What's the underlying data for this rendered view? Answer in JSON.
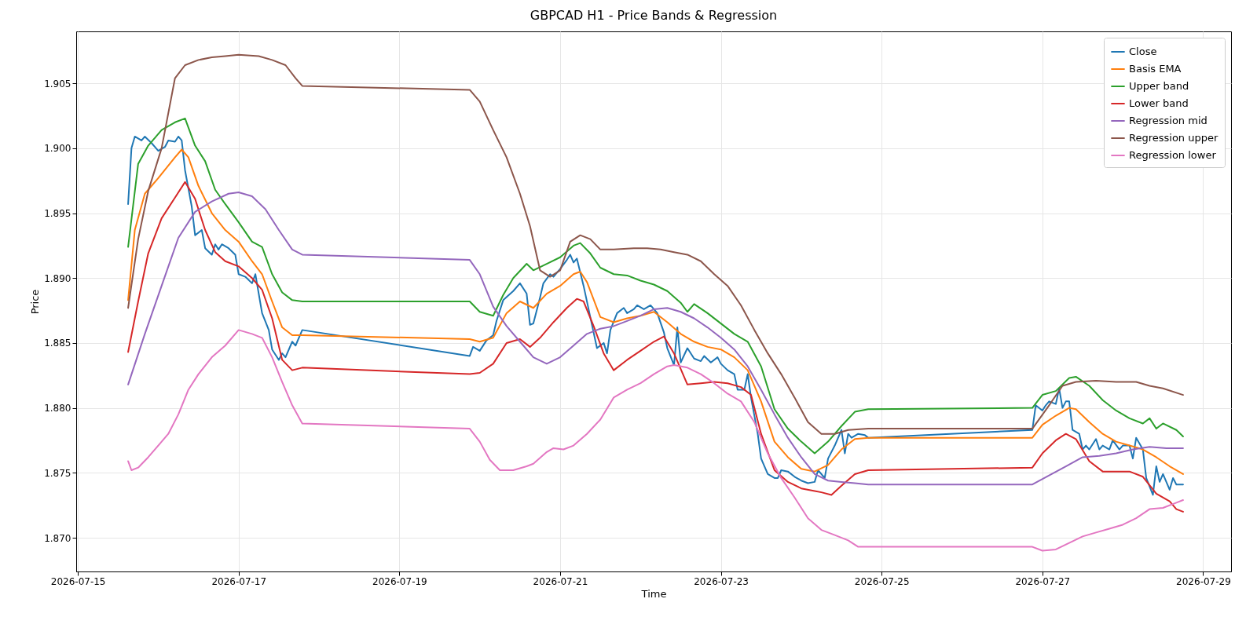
{
  "chart_data": {
    "type": "line",
    "title": "GBPCAD H1 - Price Bands & Regression",
    "xlabel": "Time",
    "ylabel": "Price",
    "grid": true,
    "legend": "top right",
    "xlim": [
      "2026-07-14T23:30",
      "2026-07-29T08:20"
    ],
    "xticks": [
      "2026-07-15",
      "2026-07-17",
      "2026-07-19",
      "2026-07-21",
      "2026-07-23",
      "2026-07-25",
      "2026-07-27",
      "2026-07-29"
    ],
    "ylim": [
      1.8674,
      1.909
    ],
    "yticks": [
      {
        "value": 1.87,
        "label": "1.870"
      },
      {
        "value": 1.875,
        "label": "1.875"
      },
      {
        "value": 1.88,
        "label": "1.880"
      },
      {
        "value": 1.885,
        "label": "1.885"
      },
      {
        "value": 1.89,
        "label": "1.890"
      },
      {
        "value": 1.895,
        "label": "1.895"
      },
      {
        "value": 1.9,
        "label": "1.900"
      },
      {
        "value": 1.905,
        "label": "1.905"
      }
    ],
    "series": [
      {
        "name": "Close",
        "color": "#1f77b4",
        "x": [
          "2026-07-15T15:00",
          "2026-07-15T16:00",
          "2026-07-15T17:00",
          "2026-07-15T19:00",
          "2026-07-15T20:00",
          "2026-07-15T22:00",
          "2026-07-15T23:00",
          "2026-07-16T00:00",
          "2026-07-16T02:00",
          "2026-07-16T03:00",
          "2026-07-16T05:00",
          "2026-07-16T06:00",
          "2026-07-16T07:00",
          "2026-07-16T08:00",
          "2026-07-16T10:00",
          "2026-07-16T11:00",
          "2026-07-16T13:00",
          "2026-07-16T14:00",
          "2026-07-16T16:00",
          "2026-07-16T17:00",
          "2026-07-16T18:00",
          "2026-07-16T19:00",
          "2026-07-16T21:00",
          "2026-07-16T23:00",
          "2026-07-17T00:00",
          "2026-07-17T02:00",
          "2026-07-17T04:00",
          "2026-07-17T05:00",
          "2026-07-17T07:00",
          "2026-07-17T09:00",
          "2026-07-17T10:00",
          "2026-07-17T12:00",
          "2026-07-17T13:00",
          "2026-07-17T14:00",
          "2026-07-17T16:00",
          "2026-07-17T17:00",
          "2026-07-17T19:00",
          "2026-07-19T21:00",
          "2026-07-19T22:00",
          "2026-07-20T00:00",
          "2026-07-20T02:00",
          "2026-07-20T04:00",
          "2026-07-20T05:00",
          "2026-07-20T07:00",
          "2026-07-20T10:00",
          "2026-07-20T12:00",
          "2026-07-20T14:00",
          "2026-07-20T15:00",
          "2026-07-20T16:00",
          "2026-07-20T18:00",
          "2026-07-20T19:00",
          "2026-07-20T21:00",
          "2026-07-20T22:00",
          "2026-07-21T00:00",
          "2026-07-21T02:00",
          "2026-07-21T03:00",
          "2026-07-21T04:00",
          "2026-07-21T05:00",
          "2026-07-21T07:00",
          "2026-07-21T09:00",
          "2026-07-21T11:00",
          "2026-07-21T13:00",
          "2026-07-21T14:00",
          "2026-07-21T15:00",
          "2026-07-21T17:00",
          "2026-07-21T19:00",
          "2026-07-21T20:00",
          "2026-07-21T22:00",
          "2026-07-21T23:00",
          "2026-07-22T01:00",
          "2026-07-22T03:00",
          "2026-07-22T05:00",
          "2026-07-22T07:00",
          "2026-07-22T08:00",
          "2026-07-22T10:00",
          "2026-07-22T11:00",
          "2026-07-22T12:00",
          "2026-07-22T14:00",
          "2026-07-22T16:00",
          "2026-07-22T18:00",
          "2026-07-22T19:00",
          "2026-07-22T21:00",
          "2026-07-22T23:00",
          "2026-07-23T00:00",
          "2026-07-23T02:00",
          "2026-07-23T04:00",
          "2026-07-23T05:00",
          "2026-07-23T07:00",
          "2026-07-23T08:00",
          "2026-07-23T09:00",
          "2026-07-23T11:00",
          "2026-07-23T12:00",
          "2026-07-23T14:00",
          "2026-07-23T16:00",
          "2026-07-23T17:00",
          "2026-07-23T18:00",
          "2026-07-23T20:00",
          "2026-07-23T22:00",
          "2026-07-24T00:00",
          "2026-07-24T02:00",
          "2026-07-24T04:00",
          "2026-07-24T05:00",
          "2026-07-24T07:00",
          "2026-07-24T08:00",
          "2026-07-24T10:00",
          "2026-07-24T12:00",
          "2026-07-24T13:00",
          "2026-07-24T14:00",
          "2026-07-24T15:00",
          "2026-07-24T17:00",
          "2026-07-24T19:00",
          "2026-07-24T20:00",
          "2026-07-26T21:00",
          "2026-07-26T22:00",
          "2026-07-27T00:00",
          "2026-07-27T01:00",
          "2026-07-27T02:00",
          "2026-07-27T04:00",
          "2026-07-27T05:00",
          "2026-07-27T06:00",
          "2026-07-27T07:00",
          "2026-07-27T08:00",
          "2026-07-27T09:00",
          "2026-07-27T11:00",
          "2026-07-27T12:00",
          "2026-07-27T13:00",
          "2026-07-27T14:00",
          "2026-07-27T16:00",
          "2026-07-27T17:00",
          "2026-07-27T18:00",
          "2026-07-27T20:00",
          "2026-07-27T21:00",
          "2026-07-27T23:00",
          "2026-07-28T00:00",
          "2026-07-28T02:00",
          "2026-07-28T03:00",
          "2026-07-28T04:00",
          "2026-07-28T06:00",
          "2026-07-28T07:00",
          "2026-07-28T09:00",
          "2026-07-28T10:00",
          "2026-07-28T11:00",
          "2026-07-28T12:00",
          "2026-07-28T14:00",
          "2026-07-28T15:00",
          "2026-07-28T16:00",
          "2026-07-28T18:00"
        ],
        "values": [
          1.8957,
          1.9,
          1.9009,
          1.9006,
          1.9009,
          1.9004,
          1.9001,
          1.8998,
          1.9001,
          1.9006,
          1.9005,
          1.9009,
          1.9006,
          1.8983,
          1.8955,
          1.8933,
          1.8937,
          1.8923,
          1.8918,
          1.8926,
          1.8922,
          1.8926,
          1.8923,
          1.8918,
          1.8903,
          1.8901,
          1.8896,
          1.8903,
          1.8873,
          1.886,
          1.8845,
          1.8837,
          1.8842,
          1.8839,
          1.8851,
          1.8848,
          1.886,
          1.884,
          1.8847,
          1.8844,
          1.8852,
          1.8856,
          1.8867,
          1.8883,
          1.889,
          1.8896,
          1.8888,
          1.8864,
          1.8865,
          1.8885,
          1.8896,
          1.8903,
          1.8901,
          1.8907,
          1.8914,
          1.8918,
          1.8912,
          1.8915,
          1.8894,
          1.887,
          1.8846,
          1.885,
          1.8842,
          1.886,
          1.8873,
          1.8877,
          1.8873,
          1.8876,
          1.8879,
          1.8876,
          1.8879,
          1.8873,
          1.8858,
          1.8846,
          1.8833,
          1.8862,
          1.8835,
          1.8846,
          1.8838,
          1.8836,
          1.884,
          1.8835,
          1.8839,
          1.8834,
          1.8829,
          1.8826,
          1.8814,
          1.8814,
          1.8826,
          1.8808,
          1.878,
          1.8761,
          1.8749,
          1.8746,
          1.8746,
          1.8752,
          1.8751,
          1.8747,
          1.8744,
          1.8742,
          1.8743,
          1.8752,
          1.8746,
          1.8761,
          1.8771,
          1.8783,
          1.8765,
          1.878,
          1.8777,
          1.878,
          1.8779,
          1.8777,
          1.8783,
          1.8802,
          1.8798,
          1.8802,
          1.8805,
          1.8803,
          1.8815,
          1.88,
          1.8805,
          1.8805,
          1.8783,
          1.878,
          1.8768,
          1.8771,
          1.8768,
          1.8776,
          1.8768,
          1.8771,
          1.8768,
          1.8775,
          1.8768,
          1.8771,
          1.8771,
          1.8761,
          1.8777,
          1.8768,
          1.8746,
          1.8733,
          1.8755,
          1.8743,
          1.8749,
          1.8737,
          1.8746,
          1.8741,
          1.8741
        ]
      },
      {
        "name": "Basis EMA",
        "color": "#ff7f0e",
        "x": [
          "2026-07-15T15:00",
          "2026-07-15T17:00",
          "2026-07-15T20:00",
          "2026-07-16T00:00",
          "2026-07-16T05:00",
          "2026-07-16T07:00",
          "2026-07-16T09:00",
          "2026-07-16T12:00",
          "2026-07-16T16:00",
          "2026-07-16T20:00",
          "2026-07-17T00:00",
          "2026-07-17T04:00",
          "2026-07-17T07:00",
          "2026-07-17T10:00",
          "2026-07-17T13:00",
          "2026-07-17T16:00",
          "2026-07-17T19:00",
          "2026-07-19T21:00",
          "2026-07-20T00:00",
          "2026-07-20T04:00",
          "2026-07-20T08:00",
          "2026-07-20T12:00",
          "2026-07-20T16:00",
          "2026-07-20T20:00",
          "2026-07-21T00:00",
          "2026-07-21T04:00",
          "2026-07-21T06:00",
          "2026-07-21T08:00",
          "2026-07-21T12:00",
          "2026-07-21T16:00",
          "2026-07-21T20:00",
          "2026-07-22T00:00",
          "2026-07-22T04:00",
          "2026-07-22T08:00",
          "2026-07-22T12:00",
          "2026-07-22T16:00",
          "2026-07-22T20:00",
          "2026-07-23T00:00",
          "2026-07-23T04:00",
          "2026-07-23T08:00",
          "2026-07-23T12:00",
          "2026-07-23T16:00",
          "2026-07-23T20:00",
          "2026-07-24T00:00",
          "2026-07-24T04:00",
          "2026-07-24T08:00",
          "2026-07-24T12:00",
          "2026-07-24T16:00",
          "2026-07-24T20:00",
          "2026-07-26T21:00",
          "2026-07-27T00:00",
          "2026-07-27T04:00",
          "2026-07-27T08:00",
          "2026-07-27T10:00",
          "2026-07-27T14:00",
          "2026-07-27T18:00",
          "2026-07-27T22:00",
          "2026-07-28T02:00",
          "2026-07-28T06:00",
          "2026-07-28T10:00",
          "2026-07-28T14:00",
          "2026-07-28T18:00"
        ],
        "values": [
          1.8883,
          1.8937,
          1.8965,
          1.8977,
          1.8993,
          1.8999,
          1.8993,
          1.8971,
          1.895,
          1.8937,
          1.8928,
          1.8913,
          1.8903,
          1.8882,
          1.8862,
          1.8856,
          1.8856,
          1.8853,
          1.8851,
          1.8854,
          1.8873,
          1.8882,
          1.8877,
          1.8888,
          1.8894,
          1.8903,
          1.8905,
          1.8897,
          1.887,
          1.8866,
          1.8869,
          1.8871,
          1.8874,
          1.8866,
          1.8857,
          1.8851,
          1.8847,
          1.8845,
          1.8839,
          1.8829,
          1.8805,
          1.8774,
          1.8762,
          1.8753,
          1.8751,
          1.8756,
          1.8768,
          1.8776,
          1.8777,
          1.8777,
          1.8787,
          1.8794,
          1.88,
          1.8799,
          1.8789,
          1.878,
          1.8774,
          1.8771,
          1.8768,
          1.8762,
          1.8755,
          1.8749
        ]
      },
      {
        "name": "Upper band",
        "color": "#2ca02c",
        "x": [
          "2026-07-15T15:00",
          "2026-07-15T18:00",
          "2026-07-15T21:00",
          "2026-07-16T01:00",
          "2026-07-16T05:00",
          "2026-07-16T08:00",
          "2026-07-16T11:00",
          "2026-07-16T14:00",
          "2026-07-16T17:00",
          "2026-07-16T20:00",
          "2026-07-17T00:00",
          "2026-07-17T04:00",
          "2026-07-17T07:00",
          "2026-07-17T10:00",
          "2026-07-17T13:00",
          "2026-07-17T16:00",
          "2026-07-17T19:00",
          "2026-07-19T21:00",
          "2026-07-20T00:00",
          "2026-07-20T04:00",
          "2026-07-20T07:00",
          "2026-07-20T10:00",
          "2026-07-20T14:00",
          "2026-07-20T16:00",
          "2026-07-20T20:00",
          "2026-07-21T00:00",
          "2026-07-21T04:00",
          "2026-07-21T06:00",
          "2026-07-21T09:00",
          "2026-07-21T12:00",
          "2026-07-21T16:00",
          "2026-07-21T20:00",
          "2026-07-22T00:00",
          "2026-07-22T04:00",
          "2026-07-22T08:00",
          "2026-07-22T12:00",
          "2026-07-22T14:00",
          "2026-07-22T16:00",
          "2026-07-22T20:00",
          "2026-07-23T00:00",
          "2026-07-23T04:00",
          "2026-07-23T08:00",
          "2026-07-23T12:00",
          "2026-07-23T16:00",
          "2026-07-23T20:00",
          "2026-07-24T00:00",
          "2026-07-24T04:00",
          "2026-07-24T08:00",
          "2026-07-24T12:00",
          "2026-07-24T16:00",
          "2026-07-24T20:00",
          "2026-07-26T21:00",
          "2026-07-27T00:00",
          "2026-07-27T04:00",
          "2026-07-27T08:00",
          "2026-07-27T10:00",
          "2026-07-27T14:00",
          "2026-07-27T18:00",
          "2026-07-27T22:00",
          "2026-07-28T02:00",
          "2026-07-28T06:00",
          "2026-07-28T08:00",
          "2026-07-28T10:00",
          "2026-07-28T12:00",
          "2026-07-28T16:00",
          "2026-07-28T18:00"
        ],
        "values": [
          1.8924,
          1.8988,
          1.9002,
          1.9014,
          1.902,
          1.9023,
          1.9002,
          1.899,
          1.8968,
          1.8957,
          1.8943,
          1.8928,
          1.8924,
          1.8903,
          1.8889,
          1.8883,
          1.8882,
          1.8882,
          1.8874,
          1.8871,
          1.8887,
          1.89,
          1.8911,
          1.8906,
          1.8911,
          1.8916,
          1.8925,
          1.8927,
          1.8919,
          1.8908,
          1.8903,
          1.8902,
          1.8898,
          1.8895,
          1.889,
          1.8881,
          1.8874,
          1.888,
          1.8873,
          1.8865,
          1.8857,
          1.8851,
          1.8832,
          1.8799,
          1.8784,
          1.8774,
          1.8765,
          1.8774,
          1.8786,
          1.8797,
          1.8799,
          1.88,
          1.881,
          1.8813,
          1.8823,
          1.8824,
          1.8817,
          1.8806,
          1.8798,
          1.8792,
          1.8788,
          1.8792,
          1.8784,
          1.8788,
          1.8783,
          1.8778
        ]
      },
      {
        "name": "Lower band",
        "color": "#d62728",
        "x": [
          "2026-07-15T15:00",
          "2026-07-15T18:00",
          "2026-07-15T21:00",
          "2026-07-16T01:00",
          "2026-07-16T05:00",
          "2026-07-16T08:00",
          "2026-07-16T11:00",
          "2026-07-16T14:00",
          "2026-07-16T17:00",
          "2026-07-16T20:00",
          "2026-07-17T00:00",
          "2026-07-17T04:00",
          "2026-07-17T07:00",
          "2026-07-17T10:00",
          "2026-07-17T13:00",
          "2026-07-17T16:00",
          "2026-07-17T19:00",
          "2026-07-19T21:00",
          "2026-07-20T00:00",
          "2026-07-20T04:00",
          "2026-07-20T08:00",
          "2026-07-20T12:00",
          "2026-07-20T15:00",
          "2026-07-20T18:00",
          "2026-07-20T22:00",
          "2026-07-21T02:00",
          "2026-07-21T05:00",
          "2026-07-21T07:00",
          "2026-07-21T10:00",
          "2026-07-21T13:00",
          "2026-07-21T16:00",
          "2026-07-21T20:00",
          "2026-07-22T00:00",
          "2026-07-22T04:00",
          "2026-07-22T07:00",
          "2026-07-22T10:00",
          "2026-07-22T14:00",
          "2026-07-22T18:00",
          "2026-07-22T22:00",
          "2026-07-23T02:00",
          "2026-07-23T06:00",
          "2026-07-23T09:00",
          "2026-07-23T12:00",
          "2026-07-23T16:00",
          "2026-07-23T20:00",
          "2026-07-24T00:00",
          "2026-07-24T04:00",
          "2026-07-24T06:00",
          "2026-07-24T09:00",
          "2026-07-24T12:00",
          "2026-07-24T16:00",
          "2026-07-24T20:00",
          "2026-07-26T21:00",
          "2026-07-27T00:00",
          "2026-07-27T04:00",
          "2026-07-27T07:00",
          "2026-07-27T10:00",
          "2026-07-27T14:00",
          "2026-07-27T18:00",
          "2026-07-27T22:00",
          "2026-07-28T02:00",
          "2026-07-28T06:00",
          "2026-07-28T10:00",
          "2026-07-28T14:00",
          "2026-07-28T16:00",
          "2026-07-28T18:00"
        ],
        "values": [
          1.8843,
          1.8882,
          1.8919,
          1.8946,
          1.8962,
          1.8974,
          1.8961,
          1.8937,
          1.892,
          1.8913,
          1.8909,
          1.89,
          1.8891,
          1.8869,
          1.8837,
          1.8829,
          1.8831,
          1.8826,
          1.8827,
          1.8834,
          1.885,
          1.8853,
          1.8847,
          1.8854,
          1.8866,
          1.8877,
          1.8884,
          1.8882,
          1.8863,
          1.8842,
          1.8829,
          1.8837,
          1.8844,
          1.8851,
          1.8855,
          1.8842,
          1.8818,
          1.8819,
          1.882,
          1.8819,
          1.8816,
          1.881,
          1.878,
          1.8752,
          1.8743,
          1.8738,
          1.8736,
          1.8735,
          1.8733,
          1.874,
          1.8749,
          1.8752,
          1.8754,
          1.8765,
          1.8775,
          1.878,
          1.8776,
          1.8759,
          1.8751,
          1.8751,
          1.8751,
          1.8747,
          1.8734,
          1.8728,
          1.8722,
          1.872
        ]
      },
      {
        "name": "Regression mid",
        "color": "#9467bd",
        "x": [
          "2026-07-15T15:00",
          "2026-07-15T20:00",
          "2026-07-16T01:00",
          "2026-07-16T06:00",
          "2026-07-16T11:00",
          "2026-07-16T16:00",
          "2026-07-16T21:00",
          "2026-07-17T00:00",
          "2026-07-17T04:00",
          "2026-07-17T08:00",
          "2026-07-17T12:00",
          "2026-07-17T16:00",
          "2026-07-17T19:00",
          "2026-07-19T21:00",
          "2026-07-20T00:00",
          "2026-07-20T04:00",
          "2026-07-20T08:00",
          "2026-07-20T12:00",
          "2026-07-20T16:00",
          "2026-07-20T20:00",
          "2026-07-21T00:00",
          "2026-07-21T04:00",
          "2026-07-21T08:00",
          "2026-07-21T12:00",
          "2026-07-21T16:00",
          "2026-07-21T20:00",
          "2026-07-22T00:00",
          "2026-07-22T04:00",
          "2026-07-22T08:00",
          "2026-07-22T12:00",
          "2026-07-22T16:00",
          "2026-07-22T20:00",
          "2026-07-23T00:00",
          "2026-07-23T04:00",
          "2026-07-23T08:00",
          "2026-07-23T12:00",
          "2026-07-23T16:00",
          "2026-07-23T20:00",
          "2026-07-24T00:00",
          "2026-07-24T04:00",
          "2026-07-24T08:00",
          "2026-07-24T12:00",
          "2026-07-24T16:00",
          "2026-07-24T20:00",
          "2026-07-26T21:00",
          "2026-07-27T02:00",
          "2026-07-27T07:00",
          "2026-07-27T12:00",
          "2026-07-27T17:00",
          "2026-07-27T22:00",
          "2026-07-28T03:00",
          "2026-07-28T08:00",
          "2026-07-28T13:00",
          "2026-07-28T18:00"
        ],
        "values": [
          1.8818,
          1.8857,
          1.8894,
          1.8931,
          1.8951,
          1.8959,
          1.8965,
          1.8966,
          1.8963,
          1.8953,
          1.8937,
          1.8922,
          1.8918,
          1.8914,
          1.8903,
          1.8878,
          1.8863,
          1.8851,
          1.8839,
          1.8834,
          1.8839,
          1.8848,
          1.8857,
          1.8861,
          1.8863,
          1.8867,
          1.8871,
          1.8876,
          1.8877,
          1.8874,
          1.8869,
          1.8862,
          1.8854,
          1.8845,
          1.8832,
          1.8814,
          1.8795,
          1.8777,
          1.8762,
          1.8749,
          1.8744,
          1.8743,
          1.8742,
          1.8741,
          1.8741,
          1.8748,
          1.8755,
          1.8762,
          1.8763,
          1.8765,
          1.8768,
          1.877,
          1.8769,
          1.8769
        ]
      },
      {
        "name": "Regression upper",
        "color": "#8c564b",
        "x": [
          "2026-07-15T15:00",
          "2026-07-15T18:00",
          "2026-07-15T21:00",
          "2026-07-16T01:00",
          "2026-07-16T05:00",
          "2026-07-16T08:00",
          "2026-07-16T12:00",
          "2026-07-16T16:00",
          "2026-07-16T20:00",
          "2026-07-17T00:00",
          "2026-07-17T06:00",
          "2026-07-17T10:00",
          "2026-07-17T14:00",
          "2026-07-17T17:00",
          "2026-07-17T19:00",
          "2026-07-19T21:00",
          "2026-07-20T00:00",
          "2026-07-20T04:00",
          "2026-07-20T08:00",
          "2026-07-20T12:00",
          "2026-07-20T15:00",
          "2026-07-20T18:00",
          "2026-07-20T21:00",
          "2026-07-21T00:00",
          "2026-07-21T03:00",
          "2026-07-21T06:00",
          "2026-07-21T09:00",
          "2026-07-21T12:00",
          "2026-07-21T16:00",
          "2026-07-21T22:00",
          "2026-07-22T02:00",
          "2026-07-22T06:00",
          "2026-07-22T10:00",
          "2026-07-22T14:00",
          "2026-07-22T18:00",
          "2026-07-22T22:00",
          "2026-07-23T02:00",
          "2026-07-23T06:00",
          "2026-07-23T10:00",
          "2026-07-23T14:00",
          "2026-07-23T18:00",
          "2026-07-23T22:00",
          "2026-07-24T02:00",
          "2026-07-24T06:00",
          "2026-07-24T10:00",
          "2026-07-24T14:00",
          "2026-07-24T20:00",
          "2026-07-26T21:00",
          "2026-07-27T02:00",
          "2026-07-27T06:00",
          "2026-07-27T10:00",
          "2026-07-27T16:00",
          "2026-07-27T22:00",
          "2026-07-28T04:00",
          "2026-07-28T08:00",
          "2026-07-28T12:00",
          "2026-07-28T18:00"
        ],
        "values": [
          1.8877,
          1.893,
          1.8967,
          1.9,
          1.9054,
          1.9064,
          1.9068,
          1.907,
          1.9071,
          1.9072,
          1.9071,
          1.9068,
          1.9064,
          1.9054,
          1.9048,
          1.9045,
          1.9036,
          1.9014,
          1.8993,
          1.8965,
          1.894,
          1.8906,
          1.8901,
          1.8906,
          1.8928,
          1.8933,
          1.893,
          1.8922,
          1.8922,
          1.8923,
          1.8923,
          1.8922,
          1.892,
          1.8918,
          1.8913,
          1.8903,
          1.8894,
          1.8879,
          1.886,
          1.8842,
          1.8826,
          1.8808,
          1.8789,
          1.878,
          1.878,
          1.8783,
          1.8784,
          1.8784,
          1.8802,
          1.8817,
          1.882,
          1.8821,
          1.882,
          1.882,
          1.8817,
          1.8815,
          1.881
        ]
      },
      {
        "name": "Regression lower",
        "color": "#e377c2",
        "x": [
          "2026-07-15T15:00",
          "2026-07-15T16:00",
          "2026-07-15T18:00",
          "2026-07-15T21:00",
          "2026-07-16T00:00",
          "2026-07-16T03:00",
          "2026-07-16T06:00",
          "2026-07-16T09:00",
          "2026-07-16T12:00",
          "2026-07-16T16:00",
          "2026-07-16T20:00",
          "2026-07-17T00:00",
          "2026-07-17T04:00",
          "2026-07-17T07:00",
          "2026-07-17T10:00",
          "2026-07-17T13:00",
          "2026-07-17T16:00",
          "2026-07-17T19:00",
          "2026-07-19T21:00",
          "2026-07-20T00:00",
          "2026-07-20T03:00",
          "2026-07-20T06:00",
          "2026-07-20T10:00",
          "2026-07-20T14:00",
          "2026-07-20T16:00",
          "2026-07-20T20:00",
          "2026-07-20T22:00",
          "2026-07-21T01:00",
          "2026-07-21T04:00",
          "2026-07-21T08:00",
          "2026-07-21T12:00",
          "2026-07-21T16:00",
          "2026-07-21T20:00",
          "2026-07-22T00:00",
          "2026-07-22T04:00",
          "2026-07-22T08:00",
          "2026-07-22T10:00",
          "2026-07-22T14:00",
          "2026-07-22T18:00",
          "2026-07-22T22:00",
          "2026-07-23T02:00",
          "2026-07-23T06:00",
          "2026-07-23T10:00",
          "2026-07-23T14:00",
          "2026-07-23T18:00",
          "2026-07-23T22:00",
          "2026-07-24T02:00",
          "2026-07-24T06:00",
          "2026-07-24T10:00",
          "2026-07-24T14:00",
          "2026-07-24T17:00",
          "2026-07-24T20:00",
          "2026-07-26T21:00",
          "2026-07-27T00:00",
          "2026-07-27T04:00",
          "2026-07-27T08:00",
          "2026-07-27T12:00",
          "2026-07-27T16:00",
          "2026-07-27T20:00",
          "2026-07-28T00:00",
          "2026-07-28T04:00",
          "2026-07-28T08:00",
          "2026-07-28T12:00",
          "2026-07-28T16:00",
          "2026-07-28T18:00"
        ],
        "values": [
          1.8759,
          1.8752,
          1.8754,
          1.8762,
          1.8771,
          1.878,
          1.8795,
          1.8814,
          1.8826,
          1.8839,
          1.8848,
          1.886,
          1.8857,
          1.8854,
          1.8839,
          1.882,
          1.8802,
          1.8788,
          1.8784,
          1.8774,
          1.876,
          1.8752,
          1.8752,
          1.8755,
          1.8757,
          1.8766,
          1.8769,
          1.8768,
          1.8771,
          1.878,
          1.8791,
          1.8808,
          1.8814,
          1.8819,
          1.8826,
          1.8832,
          1.8833,
          1.8831,
          1.8826,
          1.8819,
          1.8811,
          1.8805,
          1.8789,
          1.8765,
          1.8746,
          1.8731,
          1.8715,
          1.8706,
          1.8702,
          1.8698,
          1.8693,
          1.8693,
          1.8693,
          1.869,
          1.8691,
          1.8696,
          1.8701,
          1.8704,
          1.8707,
          1.871,
          1.8715,
          1.8722,
          1.8723,
          1.8727,
          1.8729
        ]
      }
    ]
  }
}
